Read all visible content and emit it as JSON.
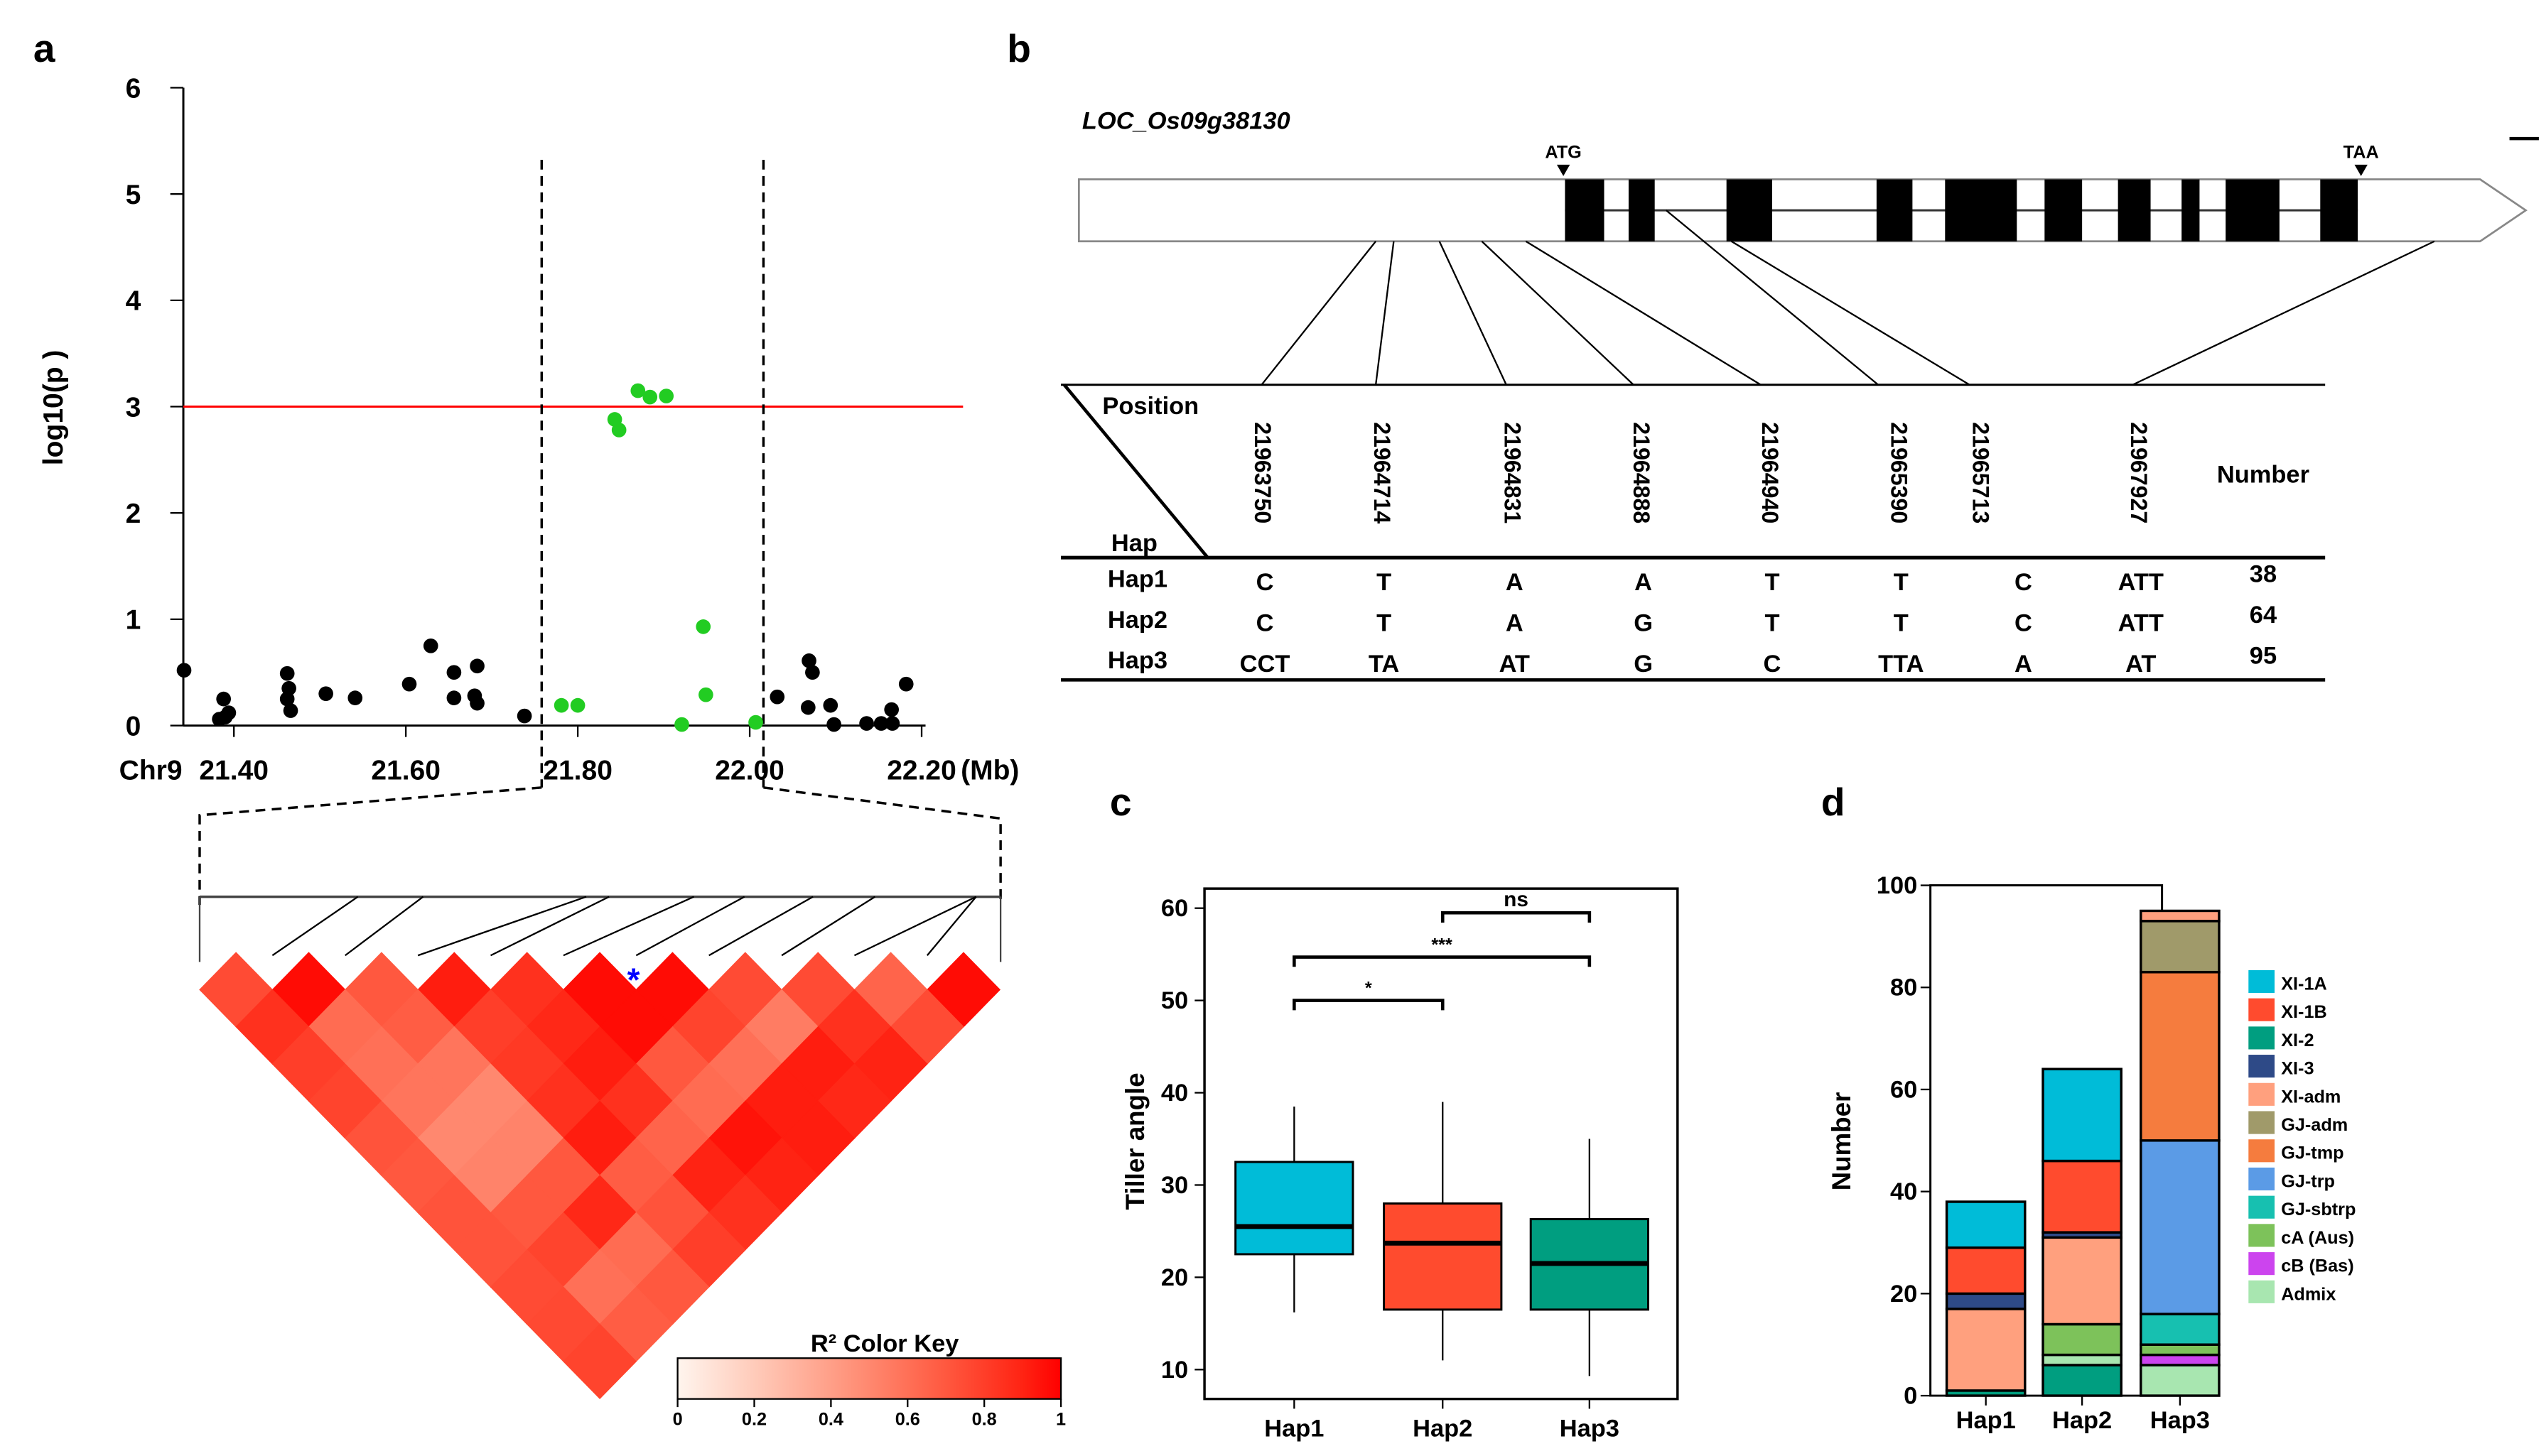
{
  "panels": {
    "a": "a",
    "b": "b",
    "c": "c",
    "d": "d"
  },
  "chart_data": [
    {
      "panel": "a",
      "type": "scatter",
      "ylabel": "log10(p )",
      "chromosome_label": "Chr9",
      "x_unit_label": "(Mb)",
      "xticks": [
        "21.40",
        "21.60",
        "21.80",
        "22.00",
        "22.20"
      ],
      "xtick_values": [
        21.4,
        21.6,
        21.8,
        22.0,
        22.2
      ],
      "yticks": [
        0,
        1,
        2,
        3,
        4,
        5,
        6
      ],
      "xlim": [
        21.34,
        22.2
      ],
      "ylim": [
        0,
        6
      ],
      "threshold": 3,
      "threshold_color": "#ff0000",
      "region_bounds": [
        21.758,
        22.016
      ],
      "colors": {
        "outside": "#000000",
        "candidate": "#22cc22"
      },
      "points_outside": [
        [
          21.342,
          0.52
        ],
        [
          21.388,
          0.25
        ],
        [
          21.383,
          0.06
        ],
        [
          21.394,
          0.12
        ],
        [
          21.39,
          0.08
        ],
        [
          21.462,
          0.49
        ],
        [
          21.464,
          0.35
        ],
        [
          21.462,
          0.25
        ],
        [
          21.466,
          0.14
        ],
        [
          21.507,
          0.3
        ],
        [
          21.541,
          0.26
        ],
        [
          21.604,
          0.39
        ],
        [
          21.629,
          0.75
        ],
        [
          21.656,
          0.5
        ],
        [
          21.656,
          0.26
        ],
        [
          21.683,
          0.56
        ],
        [
          21.68,
          0.28
        ],
        [
          21.683,
          0.21
        ],
        [
          21.738,
          0.09
        ],
        [
          22.032,
          0.27
        ],
        [
          22.069,
          0.61
        ],
        [
          22.073,
          0.5
        ],
        [
          22.068,
          0.17
        ],
        [
          22.094,
          0.19
        ],
        [
          22.098,
          0.01
        ],
        [
          22.136,
          0.02
        ],
        [
          22.153,
          0.02
        ],
        [
          22.165,
          0.15
        ],
        [
          22.166,
          0.02
        ],
        [
          22.182,
          0.39
        ]
      ],
      "points_candidate": [
        [
          21.781,
          0.19
        ],
        [
          21.8,
          0.19
        ],
        [
          21.843,
          2.88
        ],
        [
          21.848,
          2.78
        ],
        [
          21.87,
          3.15
        ],
        [
          21.884,
          3.09
        ],
        [
          21.903,
          3.1
        ],
        [
          21.921,
          0.01
        ],
        [
          21.946,
          0.93
        ],
        [
          21.949,
          0.29
        ],
        [
          22.007,
          0.03
        ]
      ]
    },
    {
      "panel": "a",
      "type": "heatmap",
      "title": "R² Color Key",
      "key_ticks": [
        "0",
        "0.2",
        "0.4",
        "0.6",
        "0.8",
        "1"
      ],
      "scale": [
        0,
        1
      ],
      "lead_snp_marker": "*",
      "marker_color": "#0000ff",
      "r2_by_distance": [
        [
          0.75,
          0.97,
          0.7,
          0.92,
          0.85,
          0.97,
          0.97,
          0.75,
          0.75,
          0.65,
          0.97
        ],
        [
          0.85,
          0.62,
          0.68,
          0.8,
          0.88,
          0.97,
          0.78,
          0.55,
          0.85,
          0.75
        ],
        [
          0.8,
          0.6,
          0.58,
          0.82,
          0.92,
          0.7,
          0.6,
          0.92,
          0.9
        ],
        [
          0.78,
          0.58,
          0.5,
          0.85,
          0.85,
          0.62,
          0.92,
          0.88
        ],
        [
          0.72,
          0.5,
          0.52,
          0.92,
          0.65,
          0.95,
          0.92
        ],
        [
          0.7,
          0.52,
          0.7,
          0.68,
          0.9,
          0.9
        ],
        [
          0.72,
          0.7,
          0.88,
          0.72,
          0.85
        ],
        [
          0.72,
          0.78,
          0.62,
          0.8
        ],
        [
          0.75,
          0.6,
          0.7
        ],
        [
          0.76,
          0.68
        ],
        [
          0.78
        ]
      ]
    },
    {
      "panel": "b",
      "type": "table",
      "gene": "LOC_Os09g38130",
      "start_codon": "ATG",
      "stop_codon": "TAA",
      "header_position": "Position",
      "header_hap": "Hap",
      "header_number": "Number",
      "positions": [
        "21963750",
        "21964714",
        "21964831",
        "21964888",
        "21964940",
        "21965390",
        "21965713",
        "21967927"
      ],
      "rows": [
        {
          "hap": "Hap1",
          "alleles": [
            "C",
            "T",
            "A",
            "A",
            "T",
            "T",
            "C",
            "ATT"
          ],
          "number": "38"
        },
        {
          "hap": "Hap2",
          "alleles": [
            "C",
            "T",
            "A",
            "G",
            "T",
            "T",
            "C",
            "ATT"
          ],
          "number": "64"
        },
        {
          "hap": "Hap3",
          "alleles": [
            "CCT",
            "TA",
            "AT",
            "G",
            "C",
            "TTA",
            "A",
            "AT"
          ],
          "number": "95"
        }
      ]
    },
    {
      "panel": "c",
      "type": "box",
      "ylabel": "Tiller angle",
      "categories": [
        "Hap1",
        "Hap2",
        "Hap3"
      ],
      "yticks": [
        10,
        20,
        30,
        40,
        50,
        60
      ],
      "ylim": [
        7,
        62
      ],
      "boxes": [
        {
          "name": "Hap1",
          "whisker_low": 16.2,
          "q1": 22.5,
          "median": 25.5,
          "q3": 32.5,
          "whisker_high": 38.5,
          "color": "#00bcd8"
        },
        {
          "name": "Hap2",
          "whisker_low": 11.0,
          "q1": 16.5,
          "median": 23.7,
          "q3": 28.0,
          "whisker_high": 39.0,
          "color": "#ff4b2e"
        },
        {
          "name": "Hap3",
          "whisker_low": 9.3,
          "q1": 16.5,
          "median": 21.5,
          "q3": 26.3,
          "whisker_high": 35.0,
          "color": "#009e80"
        }
      ],
      "significance": [
        {
          "from": "Hap1",
          "to": "Hap2",
          "y": 50,
          "label": "*"
        },
        {
          "from": "Hap1",
          "to": "Hap3",
          "y": 54.7,
          "label": "***"
        },
        {
          "from": "Hap2",
          "to": "Hap3",
          "y": 59.5,
          "label": "ns"
        }
      ]
    },
    {
      "panel": "d",
      "type": "bar",
      "stacked": true,
      "ylabel": "Number",
      "categories": [
        "Hap1",
        "Hap2",
        "Hap3"
      ],
      "yticks": [
        0,
        20,
        40,
        60,
        80,
        100
      ],
      "ylim": [
        0,
        100
      ],
      "legend_position": "right",
      "series": [
        {
          "name": "XI-1A",
          "color": "#00bcd8",
          "values": [
            9,
            18,
            0
          ]
        },
        {
          "name": "XI-1B",
          "color": "#ff4b2e",
          "values": [
            9,
            14,
            0
          ]
        },
        {
          "name": "XI-2",
          "color": "#009e80",
          "values": [
            1,
            6,
            0
          ]
        },
        {
          "name": "XI-3",
          "color": "#2e4a87",
          "values": [
            3,
            1,
            0
          ]
        },
        {
          "name": "XI-adm",
          "color": "#ffa07e",
          "values": [
            16,
            17,
            2
          ]
        },
        {
          "name": "GJ-adm",
          "color": "#a09a6a",
          "values": [
            0,
            0,
            10
          ]
        },
        {
          "name": "GJ-tmp",
          "color": "#f57c3e",
          "values": [
            0,
            0,
            33
          ]
        },
        {
          "name": "GJ-trp",
          "color": "#5b9be6",
          "values": [
            0,
            0,
            34
          ]
        },
        {
          "name": "GJ-sbtrp",
          "color": "#17c0b0",
          "values": [
            0,
            0,
            6
          ]
        },
        {
          "name": "cA (Aus)",
          "color": "#7dc25a",
          "values": [
            0,
            6,
            2
          ]
        },
        {
          "name": "cB (Bas)",
          "color": "#cc44ee",
          "values": [
            0,
            0,
            2
          ]
        },
        {
          "name": "Admix",
          "color": "#a8e6b0",
          "values": [
            0,
            2,
            6
          ]
        }
      ],
      "stack_order_bottom_up": [
        "XI-2",
        "Admix",
        "cB (Bas)",
        "cA (Aus)",
        "GJ-sbtrp",
        "GJ-trp",
        "GJ-tmp",
        "GJ-adm",
        "XI-adm",
        "XI-3",
        "XI-1B",
        "XI-1A"
      ]
    }
  ]
}
